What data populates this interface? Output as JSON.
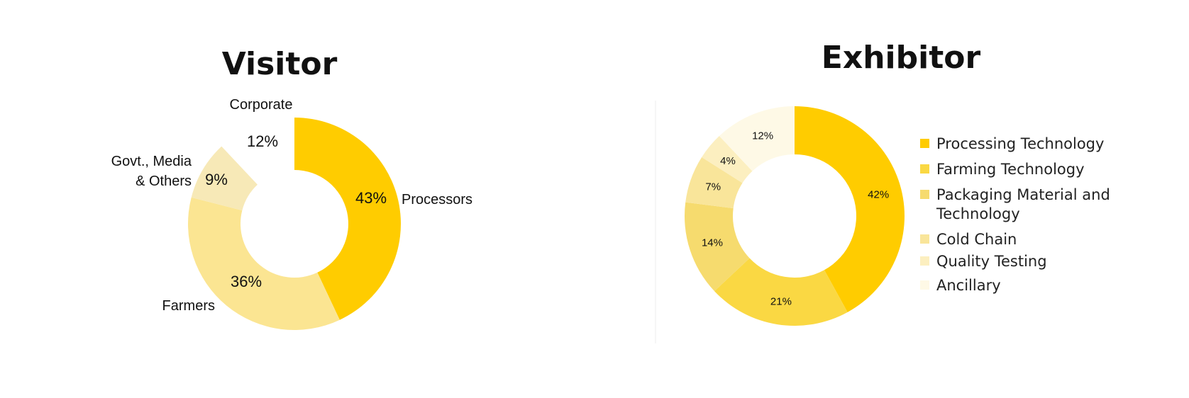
{
  "chart_data": [
    {
      "type": "pie",
      "variant": "donut",
      "title": "Visitor",
      "labels_on_chart": true,
      "categories": [
        "Processors",
        "Farmers",
        "Govt., Media & Others",
        "Corporate"
      ],
      "category_lines": [
        [
          "Processors"
        ],
        [
          "Farmers"
        ],
        [
          "Govt., Media",
          "& Others"
        ],
        [
          "Corporate"
        ]
      ],
      "values": [
        43,
        36,
        9,
        12
      ],
      "value_labels": [
        "43%",
        "36%",
        "9%",
        "12%"
      ],
      "colors": [
        "#FFCC00",
        "#FBE592",
        "#F7E9B7",
        "#FFFFFF"
      ],
      "start_angle_deg": 0
    },
    {
      "type": "pie",
      "variant": "donut",
      "title": "Exhibitor",
      "legend": "right",
      "categories": [
        "Processing Technology",
        "Farming Technology",
        "Packaging Material and Technology",
        "Cold Chain",
        "Quality Testing",
        "Ancillary"
      ],
      "legend_lines": [
        [
          "Processing Technology"
        ],
        [
          "Farming Technology"
        ],
        [
          "Packaging Material and",
          "Technology"
        ],
        [
          "Cold Chain"
        ],
        [
          "Quality Testing"
        ],
        [
          "Ancillary"
        ]
      ],
      "values": [
        42,
        21,
        14,
        7,
        4,
        12
      ],
      "value_labels": [
        "42%",
        "21%",
        "14%",
        "7%",
        "4%",
        "12%"
      ],
      "colors": [
        "#FFCC00",
        "#FAD843",
        "#F6DB6E",
        "#F9E59A",
        "#FCEFC0",
        "#FEF9E6"
      ],
      "start_angle_deg": 0
    }
  ]
}
